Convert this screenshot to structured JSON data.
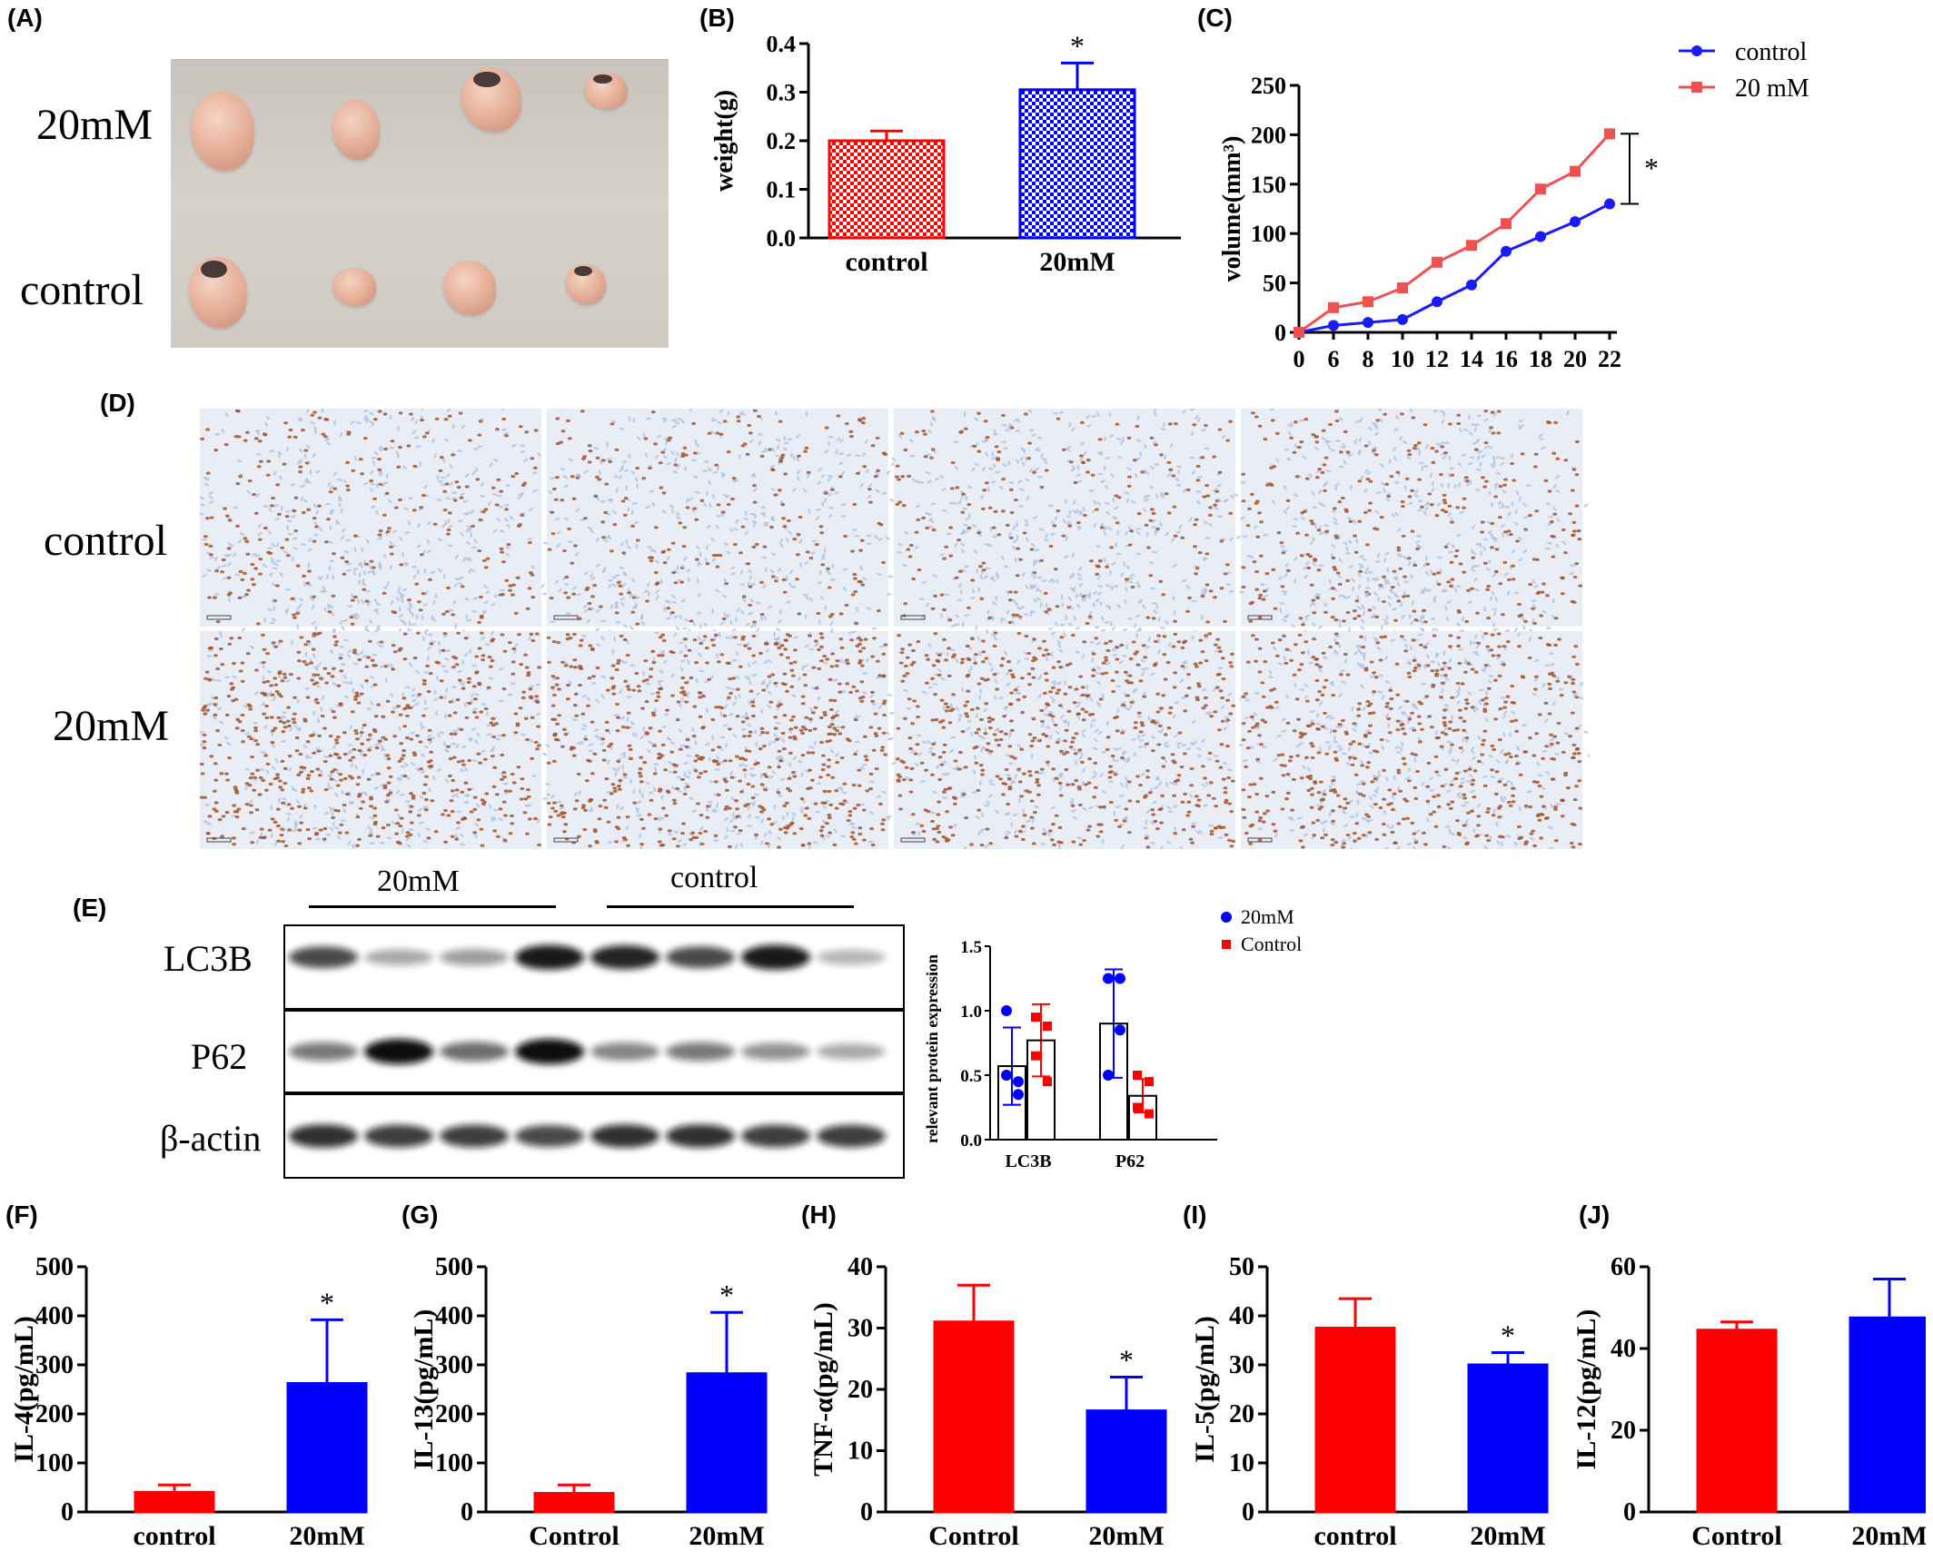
{
  "panels": {
    "A": "(A)",
    "B": "(B)",
    "C": "(C)",
    "D": "(D)",
    "E": "(E)",
    "F": "(F)",
    "G": "(G)",
    "H": "(H)",
    "I": "(I)",
    "J": "(J)"
  },
  "photo": {
    "row_top": "20mM",
    "row_bottom": "control"
  },
  "ihc": {
    "row_top": "control",
    "row_bottom": "20mM"
  },
  "blot": {
    "group_left": "20mM",
    "group_right": "control",
    "rows": [
      "LC3B",
      "P62",
      "β-actin"
    ]
  },
  "colors": {
    "red": "#ff0000",
    "blue": "#0000ff",
    "line_red": "#f05050",
    "line_blue": "#1a1aff"
  },
  "chart_data": [
    {
      "id": "B",
      "type": "bar",
      "categories": [
        "control",
        "20mM"
      ],
      "values": [
        0.2,
        0.305
      ],
      "errors": [
        0.02,
        0.055
      ],
      "ylabel": "weight(g)",
      "ylim": [
        0,
        0.4
      ],
      "yticks": [
        "0.0",
        "0.1",
        "0.2",
        "0.3",
        "0.4"
      ],
      "significance": [
        "",
        "*"
      ],
      "fill": [
        "red checkered",
        "blue checkered"
      ]
    },
    {
      "id": "C",
      "type": "line",
      "x": [
        0,
        6,
        8,
        10,
        12,
        14,
        16,
        18,
        20,
        22
      ],
      "series": [
        {
          "name": "control",
          "values": [
            0,
            7,
            10,
            13,
            31,
            48,
            82,
            97,
            112,
            130
          ]
        },
        {
          "name": "20 mM",
          "values": [
            0,
            25,
            31,
            45,
            71,
            88,
            110,
            145,
            163,
            201
          ]
        }
      ],
      "ylabel": "volume(mm³)",
      "ylim": [
        0,
        250
      ],
      "yticks": [
        "0",
        "50",
        "100",
        "150",
        "200",
        "250"
      ],
      "significance": "*",
      "legend": "top-right"
    },
    {
      "id": "E",
      "type": "bar",
      "categories": [
        "LC3B",
        "P62"
      ],
      "series": [
        {
          "name": "20mM",
          "values": [
            0.57,
            0.9
          ],
          "errors": [
            0.3,
            0.42
          ],
          "points": [
            [
              1.0,
              0.45,
              0.5,
              0.35
            ],
            [
              1.25,
              1.25,
              0.5,
              0.85
            ]
          ]
        },
        {
          "name": "Control",
          "values": [
            0.77,
            0.34
          ],
          "errors": [
            0.28,
            0.13
          ],
          "points": [
            [
              0.95,
              0.88,
              0.65,
              0.45
            ],
            [
              0.5,
              0.45,
              0.25,
              0.2
            ]
          ]
        }
      ],
      "ylabel": "relevant protein expression",
      "ylim": [
        0,
        1.5
      ],
      "yticks": [
        "0.0",
        "0.5",
        "1.0",
        "1.5"
      ],
      "legend": "top-right"
    },
    {
      "id": "F",
      "type": "bar",
      "categories": [
        "control",
        "20mM"
      ],
      "values": [
        40,
        262
      ],
      "errors": [
        15,
        130
      ],
      "ylabel": "IL-4(pg/mL)",
      "ylim": [
        0,
        500
      ],
      "yticks": [
        "0",
        "100",
        "200",
        "300",
        "400",
        "500"
      ],
      "significance": [
        "",
        "*"
      ]
    },
    {
      "id": "G",
      "type": "bar",
      "categories": [
        "Control",
        "20mM"
      ],
      "values": [
        38,
        282
      ],
      "errors": [
        17,
        125
      ],
      "ylabel": "IL-13(pg/mL)",
      "ylim": [
        0,
        500
      ],
      "yticks": [
        "0",
        "100",
        "200",
        "300",
        "400",
        "500"
      ],
      "significance": [
        "",
        "*"
      ]
    },
    {
      "id": "H",
      "type": "bar",
      "categories": [
        "Control",
        "20mM"
      ],
      "values": [
        31,
        16.5
      ],
      "errors": [
        6,
        5.5
      ],
      "ylabel": "TNF-α(pg/mL)",
      "ylim": [
        0,
        40
      ],
      "yticks": [
        "0",
        "10",
        "20",
        "30",
        "40"
      ],
      "significance": [
        "",
        "*"
      ]
    },
    {
      "id": "I",
      "type": "bar",
      "categories": [
        "control",
        "20mM"
      ],
      "values": [
        37.5,
        30
      ],
      "errors": [
        6,
        2.5
      ],
      "ylabel": "IL-5(pg/mL)",
      "ylim": [
        0,
        50
      ],
      "yticks": [
        "0",
        "10",
        "20",
        "30",
        "40",
        "50"
      ],
      "significance": [
        "",
        "*"
      ]
    },
    {
      "id": "J",
      "type": "bar",
      "categories": [
        "Control",
        "20mM"
      ],
      "values": [
        44.5,
        47.5
      ],
      "errors": [
        2,
        9.5
      ],
      "ylabel": "IL-12(pg/mL)",
      "ylim": [
        0,
        60
      ],
      "yticks": [
        "0",
        "20",
        "40",
        "60"
      ],
      "significance": [
        "",
        ""
      ]
    }
  ]
}
